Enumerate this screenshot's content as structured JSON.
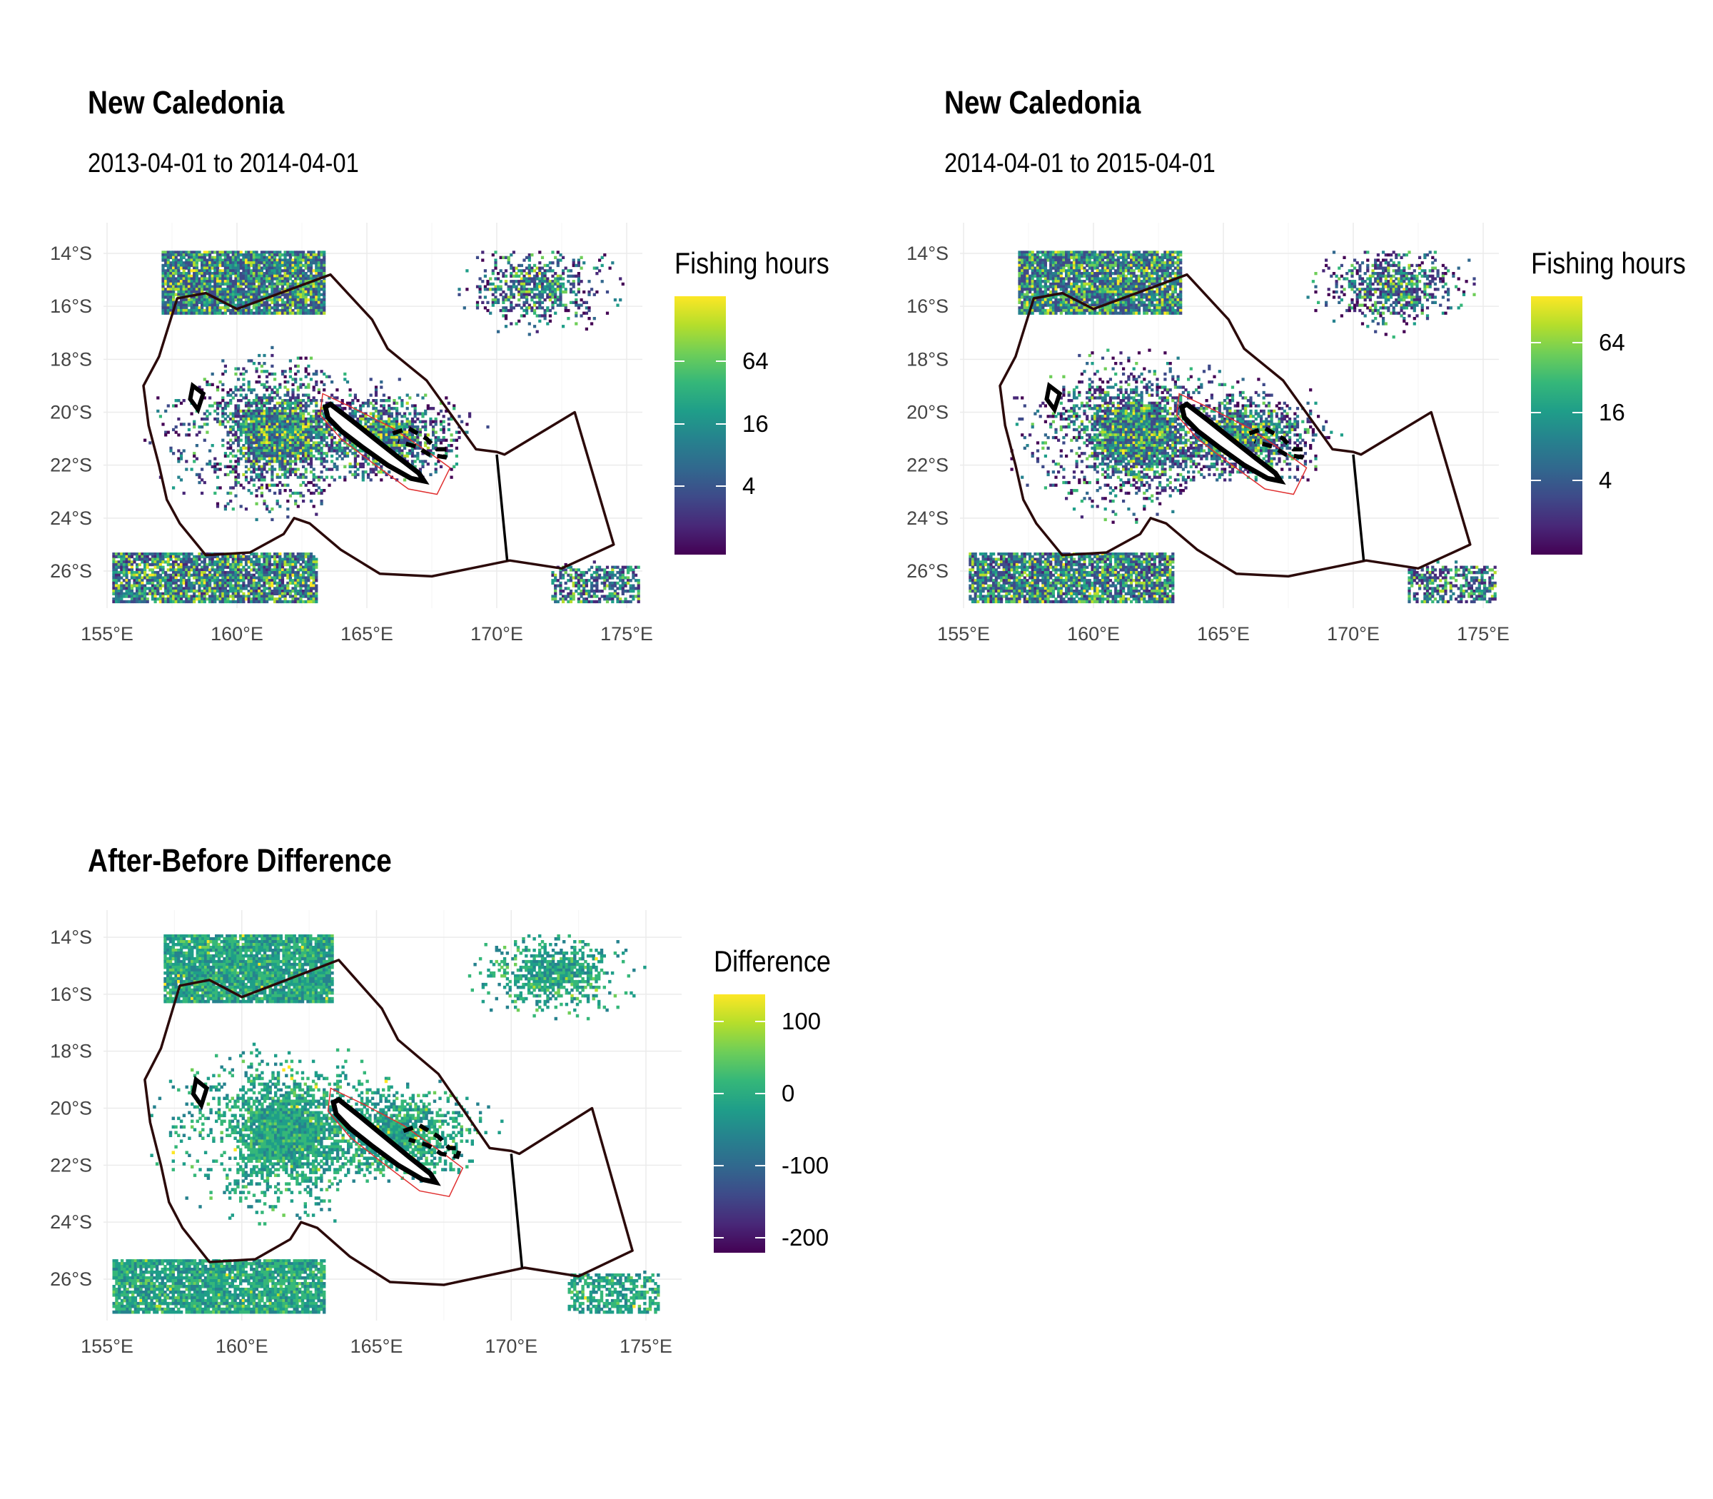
{
  "panels": [
    {
      "title": "New Caledonia",
      "subtitle": "2013-04-01 to 2014-04-01",
      "legend_title": "Fishing hours",
      "legend_labels": [
        "64",
        "16",
        "4"
      ]
    },
    {
      "title": "New Caledonia",
      "subtitle": "2014-04-01 to 2015-04-01",
      "legend_title": "Fishing hours",
      "legend_labels": [
        "64",
        "16",
        "4"
      ]
    },
    {
      "title": "After-Before Difference",
      "subtitle": "",
      "legend_title": "Difference",
      "legend_labels": [
        "100",
        "0",
        "-100",
        "-200"
      ]
    }
  ],
  "axes": {
    "lat_labels": [
      "14°S",
      "16°S",
      "18°S",
      "20°S",
      "22°S",
      "24°S",
      "26°S"
    ],
    "lon_labels": [
      "155°E",
      "160°E",
      "165°E",
      "170°E",
      "175°E"
    ]
  },
  "chart_data": [
    {
      "type": "heatmap",
      "title": "New Caledonia",
      "subtitle": "2013-04-01 to 2014-04-01",
      "fill_legend": "Fishing hours",
      "color_scale": "viridis (log)",
      "legend_breaks": [
        4,
        16,
        64
      ],
      "xlim": [
        154.0,
        176.0
      ],
      "ylim": [
        -27.5,
        -13.2
      ],
      "grid": true,
      "legend_position": "right",
      "colors": {
        "low": "#440154",
        "mid": "#21918c",
        "high": "#fde725",
        "eez_boundary": "#2b0a0a",
        "reef": "#e03030",
        "land": "#000000"
      }
    },
    {
      "type": "heatmap",
      "title": "New Caledonia",
      "subtitle": "2014-04-01 to 2015-04-01",
      "fill_legend": "Fishing hours",
      "color_scale": "viridis (log)",
      "legend_breaks": [
        4,
        16,
        64
      ],
      "xlim": [
        154.0,
        176.0
      ],
      "ylim": [
        -27.5,
        -13.2
      ],
      "grid": true,
      "legend_position": "right"
    },
    {
      "type": "heatmap",
      "title": "After-Before Difference",
      "fill_legend": "Difference",
      "color_scale": "viridis",
      "legend_breaks": [
        -200,
        -100,
        0,
        100
      ],
      "legend_range": [
        -230,
        130
      ],
      "xlim": [
        154.0,
        176.0
      ],
      "ylim": [
        -27.5,
        -13.2
      ],
      "grid": true,
      "legend_position": "right"
    }
  ]
}
